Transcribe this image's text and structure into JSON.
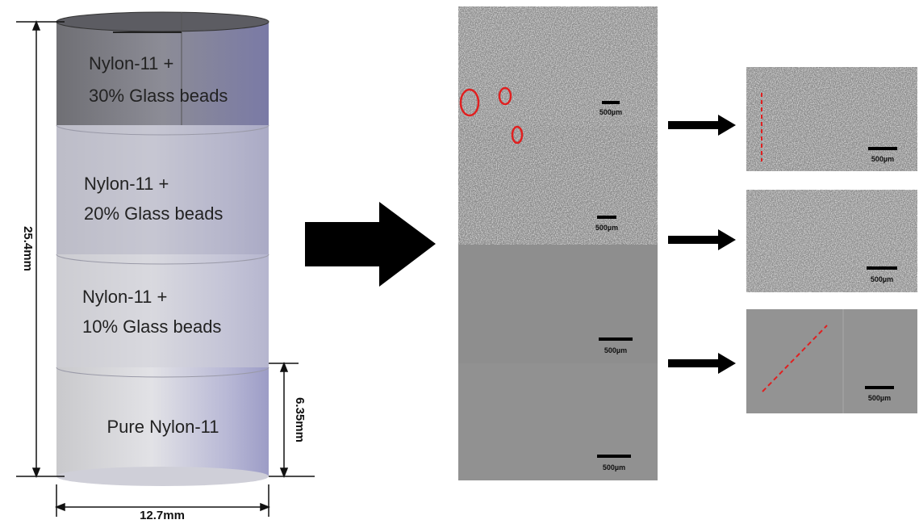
{
  "cylinder": {
    "layers": [
      {
        "lines": [
          "Nylon-11 +",
          "30% Glass beads"
        ]
      },
      {
        "lines": [
          "Nylon-11 +",
          "20% Glass beads"
        ]
      },
      {
        "lines": [
          "Nylon-11 +",
          "10% Glass beads"
        ]
      },
      {
        "lines": [
          "Pure Nylon-11"
        ]
      }
    ],
    "dimensions": {
      "height": "25.4mm",
      "layer_height": "6.35mm",
      "diameter": "12.7mm"
    }
  },
  "micrograph": {
    "scale_bars": [
      "500µm",
      "500µm",
      "500µm",
      "500µm"
    ]
  },
  "thumbnails": [
    {
      "scale_bar": "500µm"
    },
    {
      "scale_bar": "500µm"
    },
    {
      "scale_bar": "500µm"
    }
  ]
}
